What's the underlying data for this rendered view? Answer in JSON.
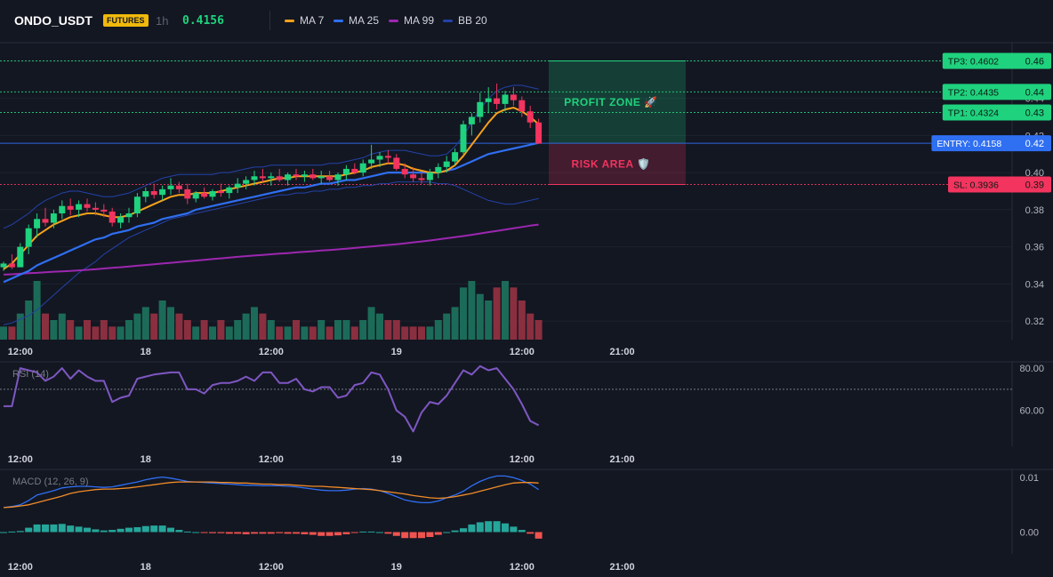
{
  "header": {
    "symbol": "ONDO_USDT",
    "badge": "FUTURES",
    "interval": "1h",
    "price": "0.4156",
    "legend": [
      {
        "label": "MA 7",
        "color": "#f7a21b"
      },
      {
        "label": "MA 25",
        "color": "#2f6ff2"
      },
      {
        "label": "MA 99",
        "color": "#9c27b0"
      },
      {
        "label": "BB 20",
        "color": "#2342a8"
      }
    ]
  },
  "chart_data": [
    {
      "type": "candlestick",
      "ylim": [
        0.31,
        0.47
      ],
      "yticks": [
        0.32,
        0.34,
        0.36,
        0.38,
        0.4,
        0.42,
        0.44,
        0.46
      ],
      "ytick_labels": [
        "0.32",
        "0.34",
        "0.36",
        "0.38",
        "0.40",
        "0.42",
        "0.44",
        "0.46"
      ],
      "xtick_labels": [
        "12:00",
        "18",
        "12:00",
        "19",
        "12:00",
        "21:00"
      ],
      "xtick_index": [
        2,
        17,
        32,
        47,
        62,
        74
      ],
      "colors": {
        "up": "#1fd27e",
        "down": "#f2345f",
        "vol_up": "#1c6b58",
        "vol_down": "#8a2f3f"
      },
      "candles": [
        [
          0.349,
          0.352,
          0.347,
          0.351
        ],
        [
          0.351,
          0.356,
          0.348,
          0.349
        ],
        [
          0.349,
          0.362,
          0.349,
          0.36
        ],
        [
          0.36,
          0.372,
          0.356,
          0.37
        ],
        [
          0.37,
          0.378,
          0.365,
          0.375
        ],
        [
          0.375,
          0.381,
          0.371,
          0.373
        ],
        [
          0.373,
          0.38,
          0.37,
          0.378
        ],
        [
          0.378,
          0.385,
          0.375,
          0.382
        ],
        [
          0.382,
          0.386,
          0.377,
          0.38
        ],
        [
          0.38,
          0.385,
          0.376,
          0.383
        ],
        [
          0.383,
          0.386,
          0.379,
          0.381
        ],
        [
          0.381,
          0.384,
          0.377,
          0.38
        ],
        [
          0.38,
          0.383,
          0.376,
          0.379
        ],
        [
          0.379,
          0.381,
          0.371,
          0.373
        ],
        [
          0.373,
          0.378,
          0.37,
          0.376
        ],
        [
          0.376,
          0.381,
          0.373,
          0.378
        ],
        [
          0.378,
          0.389,
          0.376,
          0.387
        ],
        [
          0.387,
          0.392,
          0.384,
          0.39
        ],
        [
          0.39,
          0.394,
          0.386,
          0.388
        ],
        [
          0.388,
          0.393,
          0.385,
          0.391
        ],
        [
          0.391,
          0.397,
          0.388,
          0.393
        ],
        [
          0.393,
          0.395,
          0.389,
          0.391
        ],
        [
          0.391,
          0.394,
          0.383,
          0.386
        ],
        [
          0.386,
          0.39,
          0.384,
          0.389
        ],
        [
          0.389,
          0.392,
          0.386,
          0.387
        ],
        [
          0.387,
          0.391,
          0.385,
          0.39
        ],
        [
          0.39,
          0.394,
          0.387,
          0.389
        ],
        [
          0.389,
          0.393,
          0.386,
          0.392
        ],
        [
          0.392,
          0.397,
          0.389,
          0.394
        ],
        [
          0.394,
          0.398,
          0.391,
          0.396
        ],
        [
          0.396,
          0.401,
          0.393,
          0.398
        ],
        [
          0.398,
          0.402,
          0.395,
          0.397
        ],
        [
          0.397,
          0.4,
          0.393,
          0.398
        ],
        [
          0.398,
          0.402,
          0.395,
          0.396
        ],
        [
          0.396,
          0.4,
          0.393,
          0.399
        ],
        [
          0.399,
          0.402,
          0.396,
          0.398
        ],
        [
          0.398,
          0.401,
          0.395,
          0.399
        ],
        [
          0.399,
          0.402,
          0.396,
          0.397
        ],
        [
          0.397,
          0.401,
          0.394,
          0.398
        ],
        [
          0.398,
          0.401,
          0.395,
          0.396
        ],
        [
          0.396,
          0.4,
          0.393,
          0.399
        ],
        [
          0.399,
          0.404,
          0.396,
          0.402
        ],
        [
          0.402,
          0.405,
          0.399,
          0.4
        ],
        [
          0.4,
          0.407,
          0.398,
          0.405
        ],
        [
          0.405,
          0.415,
          0.402,
          0.407
        ],
        [
          0.407,
          0.411,
          0.403,
          0.409
        ],
        [
          0.409,
          0.412,
          0.405,
          0.408
        ],
        [
          0.408,
          0.41,
          0.401,
          0.402
        ],
        [
          0.402,
          0.405,
          0.397,
          0.399
        ],
        [
          0.399,
          0.403,
          0.395,
          0.397
        ],
        [
          0.397,
          0.4,
          0.394,
          0.396
        ],
        [
          0.396,
          0.402,
          0.393,
          0.4
        ],
        [
          0.4,
          0.405,
          0.397,
          0.403
        ],
        [
          0.403,
          0.409,
          0.4,
          0.406
        ],
        [
          0.406,
          0.413,
          0.404,
          0.411
        ],
        [
          0.411,
          0.428,
          0.41,
          0.426
        ],
        [
          0.426,
          0.432,
          0.42,
          0.43
        ],
        [
          0.43,
          0.443,
          0.427,
          0.438
        ],
        [
          0.438,
          0.446,
          0.432,
          0.44
        ],
        [
          0.44,
          0.448,
          0.434,
          0.437
        ],
        [
          0.437,
          0.444,
          0.433,
          0.442
        ],
        [
          0.442,
          0.446,
          0.436,
          0.439
        ],
        [
          0.439,
          0.441,
          0.43,
          0.433
        ],
        [
          0.433,
          0.436,
          0.424,
          0.427
        ],
        [
          0.427,
          0.429,
          0.416,
          0.4156
        ]
      ],
      "volume": [
        2,
        2,
        4,
        6,
        9,
        4,
        3,
        4,
        3,
        2,
        3,
        2,
        3,
        2,
        2,
        3,
        4,
        5,
        4,
        6,
        5,
        4,
        3,
        2,
        3,
        2,
        3,
        2,
        3,
        4,
        5,
        4,
        3,
        2,
        2,
        3,
        2,
        2,
        3,
        2,
        3,
        3,
        2,
        3,
        5,
        4,
        3,
        3,
        2,
        2,
        2,
        2,
        3,
        4,
        5,
        8,
        9,
        7,
        6,
        8,
        9,
        8,
        6,
        4,
        3
      ],
      "ma7": [
        0.348,
        0.351,
        0.356,
        0.361,
        0.366,
        0.369,
        0.372,
        0.374,
        0.376,
        0.377,
        0.378,
        0.378,
        0.377,
        0.376,
        0.376,
        0.377,
        0.379,
        0.381,
        0.383,
        0.385,
        0.387,
        0.388,
        0.388,
        0.389,
        0.389,
        0.389,
        0.39,
        0.391,
        0.392,
        0.393,
        0.394,
        0.395,
        0.396,
        0.397,
        0.397,
        0.398,
        0.398,
        0.398,
        0.398,
        0.398,
        0.398,
        0.399,
        0.4,
        0.401,
        0.403,
        0.404,
        0.405,
        0.405,
        0.404,
        0.402,
        0.401,
        0.4,
        0.4,
        0.401,
        0.404,
        0.409,
        0.415,
        0.421,
        0.427,
        0.432,
        0.434,
        0.435,
        0.433,
        0.43,
        0.426
      ],
      "ma25": [
        0.341,
        0.343,
        0.345,
        0.347,
        0.35,
        0.352,
        0.354,
        0.356,
        0.358,
        0.36,
        0.362,
        0.364,
        0.365,
        0.367,
        0.368,
        0.369,
        0.371,
        0.372,
        0.373,
        0.375,
        0.376,
        0.377,
        0.378,
        0.38,
        0.381,
        0.382,
        0.383,
        0.384,
        0.385,
        0.386,
        0.387,
        0.388,
        0.389,
        0.39,
        0.391,
        0.392,
        0.392,
        0.393,
        0.394,
        0.394,
        0.395,
        0.396,
        0.396,
        0.397,
        0.398,
        0.399,
        0.4,
        0.4,
        0.4,
        0.4,
        0.4,
        0.4,
        0.4,
        0.401,
        0.402,
        0.404,
        0.406,
        0.408,
        0.41,
        0.411,
        0.412,
        0.413,
        0.414,
        0.415,
        0.416
      ],
      "ma99": [
        0.345,
        0.3452,
        0.3455,
        0.3458,
        0.346,
        0.3463,
        0.3466,
        0.3468,
        0.347,
        0.3473,
        0.3476,
        0.3479,
        0.3483,
        0.3487,
        0.349,
        0.3494,
        0.3498,
        0.3502,
        0.3506,
        0.351,
        0.3514,
        0.3518,
        0.3522,
        0.3526,
        0.353,
        0.3534,
        0.3538,
        0.3542,
        0.3546,
        0.355,
        0.3553,
        0.3556,
        0.356,
        0.3563,
        0.3566,
        0.357,
        0.3573,
        0.3576,
        0.358,
        0.3583,
        0.3586,
        0.359,
        0.3594,
        0.3598,
        0.3602,
        0.3606,
        0.361,
        0.3614,
        0.3619,
        0.3624,
        0.3629,
        0.3634,
        0.364,
        0.3646,
        0.3652,
        0.3658,
        0.3665,
        0.3672,
        0.3679,
        0.3686,
        0.3693,
        0.37,
        0.3707,
        0.3714,
        0.372
      ],
      "bb_upper": [
        0.37,
        0.372,
        0.375,
        0.378,
        0.382,
        0.385,
        0.387,
        0.389,
        0.39,
        0.39,
        0.389,
        0.388,
        0.387,
        0.387,
        0.388,
        0.389,
        0.391,
        0.393,
        0.395,
        0.397,
        0.398,
        0.399,
        0.399,
        0.399,
        0.399,
        0.399,
        0.4,
        0.4,
        0.401,
        0.402,
        0.403,
        0.403,
        0.404,
        0.404,
        0.404,
        0.404,
        0.404,
        0.404,
        0.404,
        0.405,
        0.405,
        0.406,
        0.407,
        0.408,
        0.41,
        0.411,
        0.412,
        0.412,
        0.412,
        0.411,
        0.41,
        0.409,
        0.409,
        0.41,
        0.414,
        0.42,
        0.427,
        0.434,
        0.44,
        0.444,
        0.446,
        0.447,
        0.447,
        0.446,
        0.445
      ],
      "bb_lower": [
        0.318,
        0.319,
        0.321,
        0.323,
        0.326,
        0.33,
        0.334,
        0.338,
        0.342,
        0.346,
        0.349,
        0.352,
        0.356,
        0.359,
        0.362,
        0.365,
        0.367,
        0.369,
        0.371,
        0.373,
        0.375,
        0.376,
        0.377,
        0.378,
        0.379,
        0.38,
        0.381,
        0.382,
        0.383,
        0.384,
        0.385,
        0.386,
        0.387,
        0.388,
        0.388,
        0.389,
        0.389,
        0.39,
        0.39,
        0.391,
        0.391,
        0.392,
        0.392,
        0.393,
        0.393,
        0.394,
        0.394,
        0.395,
        0.395,
        0.395,
        0.395,
        0.395,
        0.394,
        0.394,
        0.393,
        0.391,
        0.389,
        0.387,
        0.385,
        0.384,
        0.383,
        0.383,
        0.384,
        0.385,
        0.386
      ],
      "levels": [
        {
          "label": "TP3: 0.4602",
          "axis": "0.46",
          "value": 0.4602,
          "color": "#1fd27e"
        },
        {
          "label": "TP2: 0.4435",
          "axis": "0.44",
          "value": 0.4435,
          "color": "#1fd27e"
        },
        {
          "label": "TP1: 0.4324",
          "axis": "0.43",
          "value": 0.4324,
          "color": "#1fd27e"
        },
        {
          "label": "ENTRY: 0.4158",
          "axis": "0.42",
          "value": 0.4158,
          "color": "#2f6ff2"
        },
        {
          "label": "SL: 0.3936",
          "axis": "0.39",
          "value": 0.3936,
          "color": "#f2345f"
        }
      ],
      "zones": [
        {
          "label": "PROFIT ZONE 🚀",
          "from": 0.4158,
          "to": 0.4602,
          "color": "#1fd27e"
        },
        {
          "label": "RISK AREA 🛡️",
          "from": 0.3936,
          "to": 0.4158,
          "color": "#f2345f"
        }
      ]
    },
    {
      "type": "line",
      "title": "RSI (14)",
      "ylim": [
        43,
        83
      ],
      "yticks": [
        60,
        80
      ],
      "ytick_labels": [
        "60.00",
        "80.00"
      ],
      "reference": 70,
      "xtick_labels": [
        "12:00",
        "18",
        "12:00",
        "19",
        "12:00",
        "21:00"
      ],
      "color": "#7e57c2",
      "values": [
        62,
        62,
        80,
        78,
        74,
        76,
        80,
        75,
        79,
        76,
        74,
        74,
        64,
        66,
        67,
        75,
        76,
        77,
        78,
        78,
        70,
        70,
        68,
        72,
        73,
        73,
        74,
        76,
        74,
        78,
        78,
        73,
        73,
        75,
        70,
        69,
        71,
        71,
        66,
        67,
        72,
        73,
        78,
        77,
        70,
        60,
        57,
        50,
        59,
        64,
        63,
        67,
        79,
        77,
        81,
        79,
        80,
        75,
        70,
        63,
        55,
        53
      ],
      "xs": [
        0,
        1,
        2,
        4,
        5,
        6,
        7,
        8,
        9,
        10,
        11,
        12,
        13,
        14,
        15,
        16,
        17,
        18,
        20,
        21,
        22,
        23,
        24,
        25,
        26,
        27,
        28,
        29,
        30,
        31,
        32,
        33,
        34,
        35,
        36,
        37,
        38,
        39,
        40,
        41,
        42,
        43,
        44,
        45,
        46,
        47,
        48,
        49,
        50,
        51,
        52,
        53,
        55,
        56,
        57,
        58,
        59,
        60,
        61,
        62,
        63,
        64
      ]
    },
    {
      "type": "line",
      "title": "MACD (12, 26, 9)",
      "ylim": [
        -0.004,
        0.0115
      ],
      "yticks": [
        0.0,
        0.01
      ],
      "ytick_labels": [
        "0.00",
        "0.01"
      ],
      "xtick_labels": [
        "12:00",
        "18",
        "12:00",
        "19",
        "12:00",
        "21:00"
      ],
      "series": [
        {
          "color": "#2f6ff2",
          "values": [
            0.0045,
            0.0047,
            0.005,
            0.0058,
            0.0068,
            0.0072,
            0.0076,
            0.0081,
            0.0083,
            0.0084,
            0.0084,
            0.0083,
            0.0082,
            0.0083,
            0.0086,
            0.0089,
            0.0092,
            0.0096,
            0.0099,
            0.0101,
            0.0099,
            0.0096,
            0.0093,
            0.0092,
            0.0091,
            0.009,
            0.0089,
            0.0088,
            0.0087,
            0.0086,
            0.0086,
            0.0085,
            0.0085,
            0.0085,
            0.0084,
            0.0083,
            0.0081,
            0.0079,
            0.0077,
            0.0076,
            0.0076,
            0.0077,
            0.0079,
            0.008,
            0.0079,
            0.0076,
            0.0071,
            0.0065,
            0.0059,
            0.0056,
            0.0054,
            0.0054,
            0.0057,
            0.0063,
            0.0068,
            0.0075,
            0.0085,
            0.0093,
            0.0099,
            0.0103,
            0.0103,
            0.01,
            0.0095,
            0.0088,
            0.0078
          ]
        },
        {
          "color": "#f28c28",
          "values": [
            0.0045,
            0.0046,
            0.0048,
            0.005,
            0.0054,
            0.0058,
            0.0062,
            0.0066,
            0.0071,
            0.0074,
            0.0076,
            0.0078,
            0.0079,
            0.0079,
            0.008,
            0.0081,
            0.0083,
            0.0085,
            0.0087,
            0.0089,
            0.0091,
            0.0092,
            0.0092,
            0.0092,
            0.0092,
            0.0092,
            0.0091,
            0.0091,
            0.009,
            0.009,
            0.0089,
            0.0088,
            0.0088,
            0.0087,
            0.0087,
            0.0086,
            0.0085,
            0.0084,
            0.0084,
            0.0083,
            0.0082,
            0.0081,
            0.008,
            0.0079,
            0.0078,
            0.0076,
            0.0074,
            0.0072,
            0.007,
            0.0067,
            0.0065,
            0.0063,
            0.0062,
            0.0063,
            0.0065,
            0.0068,
            0.0071,
            0.0075,
            0.0079,
            0.0083,
            0.0087,
            0.009,
            0.0091,
            0.0091,
            0.009
          ]
        }
      ],
      "histogram": [
        0,
        0.0001,
        0.0002,
        0.0008,
        0.0014,
        0.0014,
        0.0014,
        0.0015,
        0.0012,
        0.001,
        0.0008,
        0.0005,
        0.0003,
        0.0004,
        0.0006,
        0.0008,
        0.0009,
        0.0011,
        0.0012,
        0.0012,
        0.0008,
        0.0004,
        0.0001,
        0,
        -0.0001,
        -0.0002,
        -0.0002,
        -0.0003,
        -0.0003,
        -0.0004,
        -0.0003,
        -0.0003,
        -0.0003,
        -0.0002,
        -0.0003,
        -0.0003,
        -0.0004,
        -0.0005,
        -0.0007,
        -0.0007,
        -0.0006,
        -0.0004,
        -0.0001,
        0.0001,
        0.0001,
        0,
        -0.0003,
        -0.0007,
        -0.0011,
        -0.0011,
        -0.0011,
        -0.0009,
        -0.0005,
        0,
        0.0003,
        0.0007,
        0.0014,
        0.0018,
        0.002,
        0.002,
        0.0016,
        0.001,
        0.0004,
        -0.0003,
        -0.0012
      ]
    }
  ]
}
